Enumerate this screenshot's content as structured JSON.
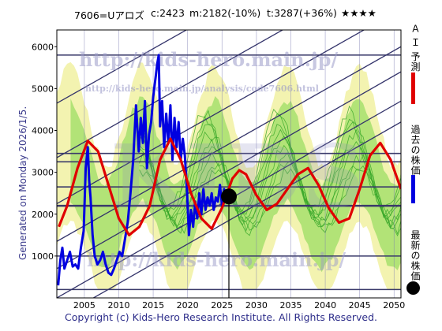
{
  "header": {
    "code_name": "7606=Uアロズ",
    "current": "c:2423",
    "min": "m:2182(-10%)",
    "target": "t:3287(+36%)",
    "stars": "★★★★"
  },
  "side_text": "Generated on Monday 2026/1/5.",
  "copyright": "Copyright (c) Kids-Hero Research Institute. All Rights Reserved.",
  "watermarks": {
    "top": "http://kids-hero.main.jp/",
    "mid": "http://kids-hero.main.jp/analysis/code7606.html",
    "big": "KIDS",
    "bottom": "http://kids-hero.main.jp/"
  },
  "legend": {
    "ai": "Ａ Ｉ 予測",
    "past": "過去の株価",
    "latest": "最新の株価"
  },
  "colors": {
    "ai": "#e00000",
    "past": "#0000e0",
    "latest": "#000000",
    "band_light": "#f3f3b0",
    "band_green": "#96dc60",
    "grid": "#3a3a6a"
  },
  "chart_data": {
    "type": "line",
    "x_ticks": [
      2005,
      2010,
      2015,
      2020,
      2025,
      2030,
      2035,
      2040,
      2045,
      2050
    ],
    "y_ticks": [
      1000,
      2000,
      3000,
      4000,
      5000,
      6000
    ],
    "xlim": [
      2001,
      2051
    ],
    "ylim": [
      0,
      6400
    ],
    "horizontal_levels": [
      200,
      1000,
      2200,
      2650,
      3250,
      3450,
      5800
    ],
    "current_point": {
      "x": 2026.0,
      "y": 2423
    },
    "series": [
      {
        "name": "過去の株価",
        "x": [
          2001.2,
          2001.5,
          2001.8,
          2002.1,
          2002.5,
          2002.9,
          2003.3,
          2003.7,
          2004.1,
          2004.5,
          2004.9,
          2005.2,
          2005.5,
          2005.7,
          2005.9,
          2006.2,
          2006.5,
          2006.9,
          2007.3,
          2007.7,
          2008.1,
          2008.5,
          2008.9,
          2009.3,
          2009.7,
          2010.1,
          2010.5,
          2010.9,
          2011.3,
          2011.7,
          2012.1,
          2012.5,
          2012.9,
          2013.2,
          2013.5,
          2013.8,
          2014.1,
          2014.4,
          2014.7,
          2015.0,
          2015.3,
          2015.6,
          2015.8,
          2016.0,
          2016.3,
          2016.6,
          2016.9,
          2017.2,
          2017.5,
          2017.8,
          2018.1,
          2018.4,
          2018.7,
          2019.0,
          2019.3,
          2019.6,
          2019.9,
          2020.2,
          2020.5,
          2020.8,
          2021.1,
          2021.4,
          2021.7,
          2022.0,
          2022.3,
          2022.6,
          2022.9,
          2023.2,
          2023.5,
          2023.8,
          2024.1,
          2024.4,
          2024.7,
          2025.0,
          2025.3,
          2025.6,
          2026.0
        ],
        "y": [
          300,
          900,
          1200,
          700,
          900,
          1100,
          750,
          800,
          700,
          1200,
          1600,
          3100,
          3600,
          2800,
          2400,
          1500,
          1000,
          800,
          900,
          1100,
          800,
          600,
          550,
          700,
          900,
          1100,
          1000,
          1400,
          1800,
          2500,
          3300,
          4600,
          3500,
          4300,
          3700,
          4700,
          3100,
          3900,
          4200,
          4800,
          5200,
          5600,
          5800,
          4100,
          4700,
          3600,
          4400,
          3700,
          4600,
          3300,
          4300,
          3600,
          4200,
          3300,
          3800,
          3400,
          2600,
          1500,
          2100,
          1700,
          2300,
          1900,
          2500,
          2000,
          2600,
          2100,
          2400,
          2200,
          2500,
          2100,
          2400,
          2300,
          2700,
          2200,
          2600,
          2300,
          2423
        ]
      },
      {
        "name": "ＡＩ予測",
        "x": [
          2001.3,
          2002.5,
          2004.0,
          2005.5,
          2007.0,
          2008.5,
          2010.0,
          2011.5,
          2013.0,
          2014.5,
          2016.0,
          2017.5,
          2019.0,
          2020.5,
          2022.0,
          2023.5,
          2025.0,
          2026.5,
          2027.5,
          2028.5,
          2030.0,
          2031.5,
          2033.0,
          2034.5,
          2036.0,
          2037.5,
          2039.0,
          2040.5,
          2042.0,
          2043.5,
          2045.0,
          2046.5,
          2048.0,
          2049.5,
          2051.0
        ],
        "y": [
          1700,
          2200,
          3100,
          3750,
          3500,
          2700,
          1900,
          1500,
          1700,
          2200,
          3300,
          3800,
          3300,
          2500,
          1900,
          1650,
          2150,
          2850,
          3050,
          2950,
          2450,
          2100,
          2250,
          2600,
          2950,
          3100,
          2700,
          2150,
          1800,
          1900,
          2600,
          3400,
          3700,
          3300,
          2600
        ]
      }
    ]
  }
}
